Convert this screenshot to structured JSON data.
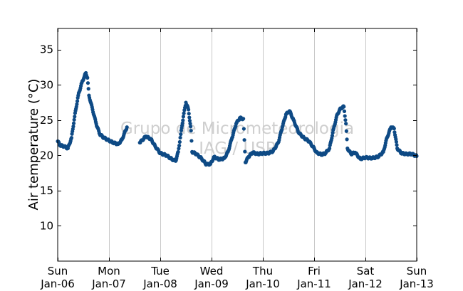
{
  "chart_data": {
    "type": "scatter",
    "title": "",
    "xlabel": "",
    "ylabel": "Air temperature (°C)",
    "watermark": [
      "Grupo de Micrometeorologia",
      "IAG / USP"
    ],
    "xlim": [
      0,
      7
    ],
    "ylim": [
      5,
      38
    ],
    "x_ticks": [
      {
        "x": 0,
        "day": "Sun",
        "date": "Jan-06"
      },
      {
        "x": 1,
        "day": "Mon",
        "date": "Jan-07"
      },
      {
        "x": 2,
        "day": "Tue",
        "date": "Jan-08"
      },
      {
        "x": 3,
        "day": "Wed",
        "date": "Jan-09"
      },
      {
        "x": 4,
        "day": "Thu",
        "date": "Jan-10"
      },
      {
        "x": 5,
        "day": "Fri",
        "date": "Jan-11"
      },
      {
        "x": 6,
        "day": "Sat",
        "date": "Jan-12"
      },
      {
        "x": 7,
        "day": "Sun",
        "date": "Jan-13"
      }
    ],
    "y_ticks": [
      10,
      15,
      20,
      25,
      30,
      35
    ],
    "grid": "vertical-at-day-boundaries",
    "marker_color": "#0e4a85",
    "series": [
      {
        "values": [
          [
            0.0,
            22.0
          ],
          [
            0.05,
            21.4
          ],
          [
            0.12,
            21.3
          ],
          [
            0.2,
            21.0
          ],
          [
            0.27,
            22.5
          ],
          [
            0.33,
            25.5
          ],
          [
            0.4,
            28.5
          ],
          [
            0.47,
            30.3
          ],
          [
            0.52,
            31.2
          ],
          [
            0.55,
            31.7
          ],
          [
            0.58,
            31.0
          ],
          [
            0.61,
            28.5
          ],
          [
            0.68,
            26.5
          ],
          [
            0.75,
            24.5
          ],
          [
            0.82,
            23.0
          ],
          [
            0.9,
            22.5
          ],
          [
            0.98,
            22.2
          ],
          [
            1.08,
            21.8
          ],
          [
            1.18,
            21.6
          ],
          [
            1.25,
            22.2
          ],
          [
            1.35,
            24.0
          ],
          [
            1.6,
            21.8
          ],
          [
            1.72,
            22.7
          ],
          [
            1.82,
            22.3
          ],
          [
            1.9,
            21.3
          ],
          [
            2.0,
            20.3
          ],
          [
            2.12,
            20.0
          ],
          [
            2.22,
            19.5
          ],
          [
            2.3,
            19.2
          ],
          [
            2.35,
            20.5
          ],
          [
            2.4,
            23.0
          ],
          [
            2.45,
            25.5
          ],
          [
            2.5,
            27.5
          ],
          [
            2.55,
            26.5
          ],
          [
            2.6,
            23.5
          ],
          [
            2.62,
            20.5
          ],
          [
            2.7,
            20.2
          ],
          [
            2.8,
            19.6
          ],
          [
            2.9,
            18.7
          ],
          [
            2.98,
            18.8
          ],
          [
            3.05,
            19.8
          ],
          [
            3.15,
            19.4
          ],
          [
            3.25,
            19.6
          ],
          [
            3.32,
            20.5
          ],
          [
            3.4,
            22.5
          ],
          [
            3.48,
            24.5
          ],
          [
            3.55,
            25.3
          ],
          [
            3.62,
            25.2
          ],
          [
            3.66,
            19.0
          ],
          [
            3.72,
            19.8
          ],
          [
            3.8,
            20.4
          ],
          [
            3.9,
            20.2
          ],
          [
            4.0,
            20.3
          ],
          [
            4.1,
            20.3
          ],
          [
            4.2,
            20.6
          ],
          [
            4.3,
            21.8
          ],
          [
            4.38,
            24.0
          ],
          [
            4.45,
            25.8
          ],
          [
            4.52,
            26.3
          ],
          [
            4.6,
            25.0
          ],
          [
            4.7,
            23.2
          ],
          [
            4.8,
            22.5
          ],
          [
            4.9,
            22.0
          ],
          [
            4.98,
            21.2
          ],
          [
            5.05,
            20.4
          ],
          [
            5.15,
            20.1
          ],
          [
            5.22,
            20.3
          ],
          [
            5.3,
            21.0
          ],
          [
            5.38,
            23.8
          ],
          [
            5.45,
            25.8
          ],
          [
            5.52,
            26.7
          ],
          [
            5.58,
            26.9
          ],
          [
            5.62,
            24.5
          ],
          [
            5.65,
            21.0
          ],
          [
            5.72,
            20.2
          ],
          [
            5.8,
            20.4
          ],
          [
            5.9,
            19.5
          ],
          [
            6.0,
            19.7
          ],
          [
            6.12,
            19.6
          ],
          [
            6.25,
            19.8
          ],
          [
            6.35,
            20.5
          ],
          [
            6.42,
            22.5
          ],
          [
            6.5,
            24.0
          ],
          [
            6.56,
            23.8
          ],
          [
            6.62,
            21.0
          ],
          [
            6.7,
            20.3
          ],
          [
            6.8,
            20.2
          ],
          [
            6.9,
            20.2
          ],
          [
            7.0,
            19.9
          ]
        ]
      }
    ]
  }
}
